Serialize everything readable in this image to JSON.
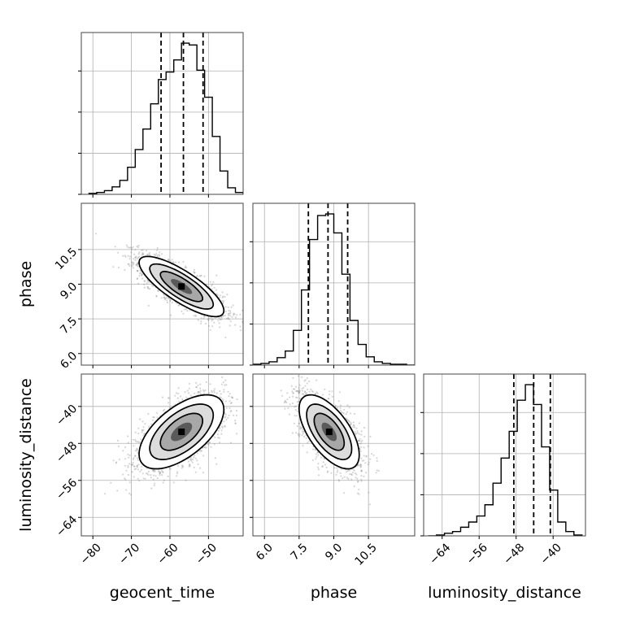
{
  "chart_data": {
    "type": "corner",
    "parameters": [
      "geocent_time",
      "phase",
      "luminosity_distance"
    ],
    "grid": true,
    "ranges": {
      "geocent_time": [
        -83,
        -41
      ],
      "phase": [
        5.5,
        12.5
      ],
      "luminosity_distance": [
        -68,
        -33
      ]
    },
    "ticks": {
      "geocent_time": [
        -80,
        -70,
        -60,
        -50
      ],
      "phase": [
        6.0,
        7.5,
        9.0,
        10.5
      ],
      "luminosity_distance": [
        -64,
        -56,
        -48,
        -40
      ]
    },
    "tick_labels": {
      "geocent_time": [
        "−80",
        "−70",
        "−60",
        "−50"
      ],
      "phase": [
        "6.0",
        "7.5",
        "9.0",
        "10.5"
      ],
      "luminosity_distance": [
        "−64",
        "−56",
        "−48",
        "−40"
      ]
    },
    "quantiles": {
      "geocent_time": [
        -62.3,
        -56.5,
        -51.4
      ],
      "phase": [
        7.9,
        8.75,
        9.6
      ],
      "luminosity_distance": [
        -48.5,
        -44.2,
        -40.6
      ]
    },
    "histograms": {
      "geocent_time": {
        "edges": [
          -81,
          -79,
          -77,
          -75,
          -73,
          -71,
          -69,
          -67,
          -65,
          -63,
          -61,
          -59,
          -57,
          -55,
          -53,
          -51,
          -49,
          -47,
          -45,
          -43,
          -41
        ],
        "counts": [
          1,
          2,
          4,
          8,
          15,
          29,
          48,
          70,
          97,
          123,
          131,
          144,
          162,
          160,
          133,
          104,
          62,
          25,
          7,
          2
        ]
      },
      "phase": {
        "edges": [
          5.5,
          5.85,
          6.2,
          6.55,
          6.9,
          7.25,
          7.6,
          7.95,
          8.3,
          8.65,
          9.0,
          9.35,
          9.7,
          10.05,
          10.4,
          10.75,
          11.1,
          11.45,
          11.8,
          12.15,
          12.5
        ],
        "counts": [
          1,
          2,
          4,
          9,
          17,
          42,
          91,
          152,
          181,
          183,
          160,
          110,
          54,
          25,
          10,
          4,
          2,
          1,
          1,
          0
        ]
      },
      "luminosity_distance": {
        "edges": [
          -67,
          -65.25,
          -63.5,
          -61.75,
          -60,
          -58.25,
          -56.5,
          -54.75,
          -53,
          -51.25,
          -49.5,
          -47.75,
          -46,
          -44.25,
          -42.5,
          -40.75,
          -39,
          -37.25,
          -35.5,
          -33.75
        ],
        "counts": [
          0,
          1,
          3,
          5,
          10,
          16,
          23,
          36,
          61,
          90,
          121,
          157,
          175,
          152,
          103,
          53,
          16,
          5,
          1
        ]
      }
    },
    "pairs": [
      {
        "x": "geocent_time",
        "y": "phase",
        "center": [
          -57,
          8.9
        ],
        "sd": [
          5.5,
          0.65
        ],
        "rho": -0.8,
        "samples": 2200
      },
      {
        "x": "geocent_time",
        "y": "luminosity_distance",
        "center": [
          -57,
          -45.5
        ],
        "sd": [
          5.5,
          4.0
        ],
        "rho": 0.6,
        "samples": 2200
      },
      {
        "x": "phase",
        "y": "luminosity_distance",
        "center": [
          8.8,
          -45.5
        ],
        "sd": [
          0.65,
          4.0
        ],
        "rho": -0.62,
        "samples": 2200
      }
    ],
    "contour_levels": [
      0.118,
      0.393,
      0.675,
      0.865
    ]
  }
}
